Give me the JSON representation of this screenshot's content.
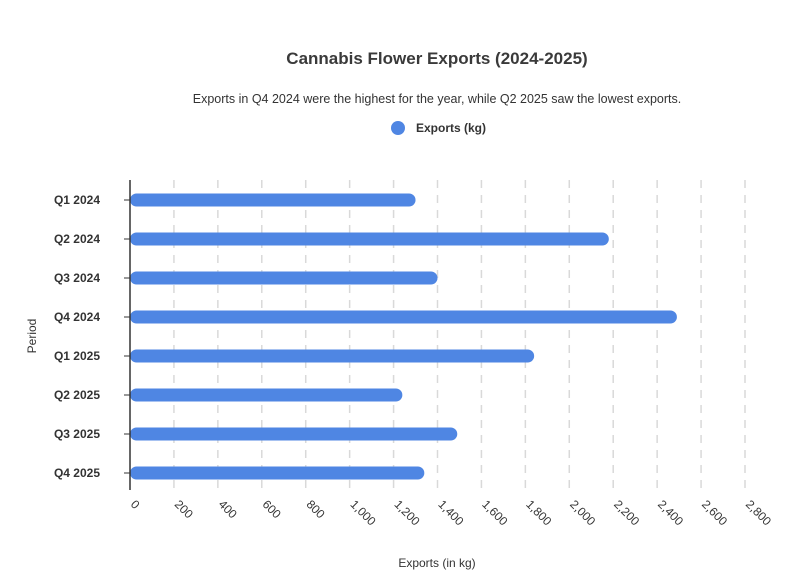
{
  "chart_data": {
    "type": "bar",
    "orientation": "horizontal",
    "title": "Cannabis Flower Exports (2024-2025)",
    "subtitle": "Exports in Q4 2024 were the highest for the year, while Q2 2025 saw the lowest exports.",
    "xlabel": "Exports (in kg)",
    "ylabel": "Period",
    "categories": [
      "Q1 2024",
      "Q2 2024",
      "Q3 2024",
      "Q4 2024",
      "Q1 2025",
      "Q2 2025",
      "Q3 2025",
      "Q4 2025"
    ],
    "series": [
      {
        "name": "Exports (kg)",
        "color": "#4f86e3",
        "values": [
          1300,
          2180,
          1400,
          2490,
          1840,
          1240,
          1490,
          1340
        ]
      }
    ],
    "xlim": [
      0,
      2800
    ],
    "xticks": [
      0,
      200,
      400,
      600,
      800,
      1000,
      1200,
      1400,
      1600,
      1800,
      2000,
      2200,
      2400,
      2600,
      2800
    ],
    "xtick_labels": [
      "0",
      "200",
      "400",
      "600",
      "800",
      "1,000",
      "1,200",
      "1,400",
      "1,600",
      "1,800",
      "2,000",
      "2,200",
      "2,400",
      "2,600",
      "2,800"
    ],
    "grid": "vertical dashed",
    "legend_position": "top-center"
  }
}
